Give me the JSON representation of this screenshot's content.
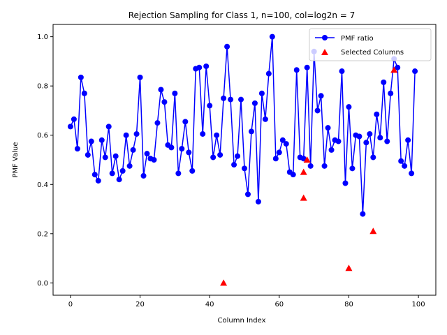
{
  "chart_data": {
    "type": "scatter",
    "title": "Rejection Sampling for Class 1, n=100, col=log2n = 7",
    "xlabel": "Column Index",
    "ylabel": "PMF Value",
    "xlim": [
      -5,
      105
    ],
    "ylim": [
      -0.05,
      1.05
    ],
    "xticks": [
      0,
      20,
      40,
      60,
      80,
      100
    ],
    "yticks": [
      0.0,
      0.2,
      0.4,
      0.6,
      0.8,
      1.0
    ],
    "legend_position": "top-right",
    "series": [
      {
        "name": "PMF ratio",
        "style": "line-markers",
        "color": "#0000ff",
        "x": [
          0,
          1,
          2,
          3,
          4,
          5,
          6,
          7,
          8,
          9,
          10,
          11,
          12,
          13,
          14,
          15,
          16,
          17,
          18,
          19,
          20,
          21,
          22,
          23,
          24,
          25,
          26,
          27,
          28,
          29,
          30,
          31,
          32,
          33,
          34,
          35,
          36,
          37,
          38,
          39,
          40,
          41,
          42,
          43,
          44,
          45,
          46,
          47,
          48,
          49,
          50,
          51,
          52,
          53,
          54,
          55,
          56,
          57,
          58,
          59,
          60,
          61,
          62,
          63,
          64,
          65,
          66,
          67,
          68,
          69,
          70,
          71,
          72,
          73,
          74,
          75,
          76,
          77,
          78,
          79,
          80,
          81,
          82,
          83,
          84,
          85,
          86,
          87,
          88,
          89,
          90,
          91,
          92,
          93,
          94,
          95,
          96,
          97,
          98,
          99
        ],
        "y": [
          0.635,
          0.665,
          0.545,
          0.835,
          0.77,
          0.52,
          0.575,
          0.44,
          0.415,
          0.58,
          0.51,
          0.635,
          0.445,
          0.515,
          0.42,
          0.455,
          0.6,
          0.475,
          0.54,
          0.605,
          0.835,
          0.435,
          0.525,
          0.505,
          0.5,
          0.65,
          0.785,
          0.735,
          0.56,
          0.55,
          0.77,
          0.445,
          0.545,
          0.655,
          0.53,
          0.455,
          0.87,
          0.875,
          0.605,
          0.88,
          0.72,
          0.51,
          0.6,
          0.52,
          0.75,
          0.96,
          0.745,
          0.48,
          0.515,
          0.745,
          0.465,
          0.36,
          0.615,
          0.73,
          0.33,
          0.77,
          0.665,
          0.85,
          1.0,
          0.505,
          0.53,
          0.58,
          0.565,
          0.45,
          0.44,
          0.865,
          0.51,
          0.505,
          0.875,
          0.475,
          0.94,
          0.7,
          0.76,
          0.475,
          0.63,
          0.54,
          0.58,
          0.575,
          0.86,
          0.405,
          0.715,
          0.465,
          0.6,
          0.595,
          0.28,
          0.57,
          0.605,
          0.51,
          0.685,
          0.59,
          0.815,
          0.575,
          0.77,
          0.91,
          0.875,
          0.495,
          0.475,
          0.58,
          0.445,
          0.86
        ]
      },
      {
        "name": "Selected Columns",
        "style": "triangle-markers",
        "color": "#ff0000",
        "x": [
          44,
          67,
          67,
          68,
          80,
          87,
          93
        ],
        "y": [
          0.0,
          0.345,
          0.45,
          0.5,
          0.06,
          0.21,
          0.865
        ]
      }
    ]
  }
}
